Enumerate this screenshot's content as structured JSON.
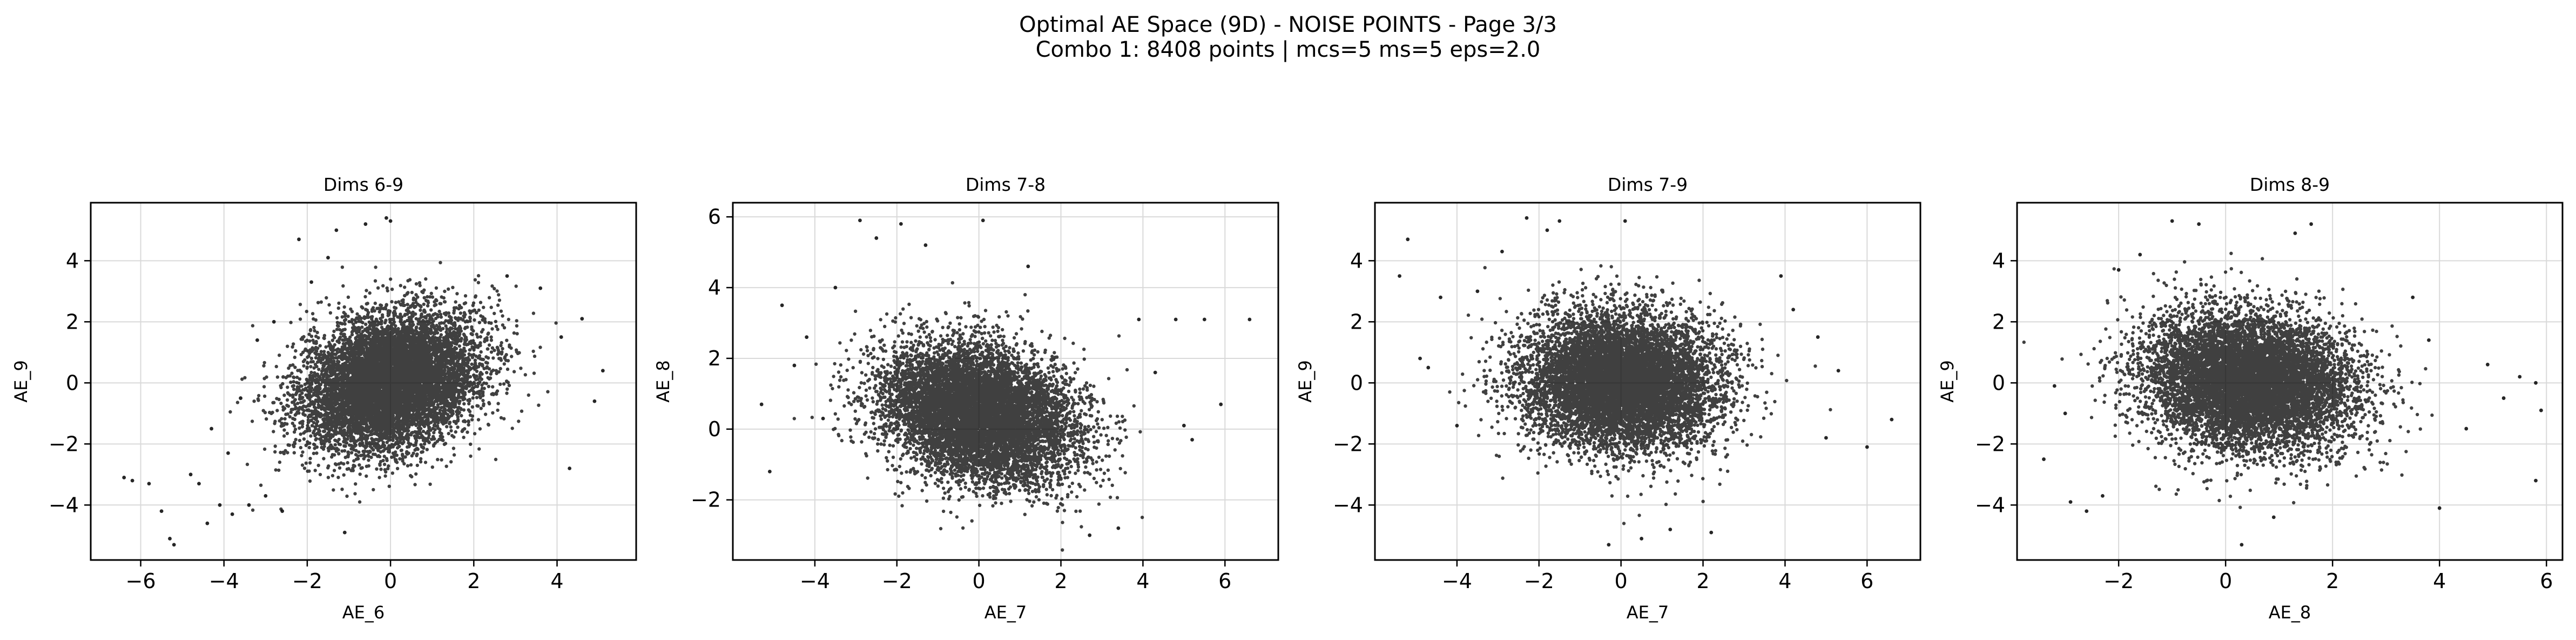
{
  "figure": {
    "title_line1": "Optimal AE Space (9D) - NOISE POINTS - Page 3/3",
    "title_line2": "Combo 1: 8408 points | mcs=5 ms=5 eps=2.0"
  },
  "colors": {
    "points": "#000000",
    "grid": "#d9d9d9",
    "axes": "#000000",
    "background": "#ffffff"
  },
  "chart_data": [
    {
      "type": "scatter",
      "title": "Dims 6-9",
      "xlabel": "AE_6",
      "ylabel": "AE_9",
      "xlim": [
        -7.2,
        5.9
      ],
      "ylim": [
        -5.8,
        5.9
      ],
      "xticks": [
        -6,
        -4,
        -2,
        0,
        2,
        4
      ],
      "yticks": [
        -4,
        -2,
        0,
        2,
        4
      ],
      "grid": true,
      "distribution": {
        "n": 8408,
        "x_mean": 0.0,
        "x_sd": 1.05,
        "y_mean": 0.05,
        "y_sd": 1.1,
        "corr": 0.28
      },
      "outliers": [
        [
          -6.4,
          -3.1
        ],
        [
          -6.2,
          -3.2
        ],
        [
          -5.8,
          -3.3
        ],
        [
          -5.5,
          -4.2
        ],
        [
          -5.3,
          -5.1
        ],
        [
          -5.2,
          -5.3
        ],
        [
          -4.8,
          -3.0
        ],
        [
          -4.6,
          -3.3
        ],
        [
          -4.4,
          -4.6
        ],
        [
          -4.3,
          -1.5
        ],
        [
          -4.1,
          -4.0
        ],
        [
          -3.9,
          -2.3
        ],
        [
          -3.8,
          -4.3
        ],
        [
          -3.6,
          -0.5
        ],
        [
          -3.4,
          -4.0
        ],
        [
          -3.2,
          1.4
        ],
        [
          -3.0,
          -3.7
        ],
        [
          -2.8,
          2.0
        ],
        [
          -2.6,
          -4.2
        ],
        [
          -2.2,
          4.7
        ],
        [
          -1.9,
          3.3
        ],
        [
          -1.5,
          4.1
        ],
        [
          -1.3,
          5.0
        ],
        [
          -1.1,
          -4.9
        ],
        [
          -0.6,
          5.2
        ],
        [
          -0.1,
          5.4
        ],
        [
          0.0,
          5.3
        ],
        [
          2.8,
          3.5
        ],
        [
          3.6,
          3.1
        ],
        [
          4.1,
          1.5
        ],
        [
          4.3,
          -2.8
        ],
        [
          4.6,
          2.1
        ],
        [
          4.9,
          -0.6
        ],
        [
          5.1,
          0.4
        ]
      ]
    },
    {
      "type": "scatter",
      "title": "Dims 7-8",
      "xlabel": "AE_7",
      "ylabel": "AE_8",
      "xlim": [
        -6.0,
        7.3
      ],
      "ylim": [
        -3.7,
        6.4
      ],
      "xticks": [
        -4,
        -2,
        0,
        2,
        4,
        6
      ],
      "yticks": [
        -2,
        0,
        2,
        4,
        6
      ],
      "grid": true,
      "distribution": {
        "n": 8408,
        "x_mean": 0.0,
        "x_sd": 1.15,
        "y_mean": 0.45,
        "y_sd": 0.95,
        "corr": -0.25
      },
      "outliers": [
        [
          -5.3,
          0.7
        ],
        [
          -5.1,
          -1.2
        ],
        [
          -4.8,
          3.5
        ],
        [
          -4.5,
          1.8
        ],
        [
          -4.2,
          2.6
        ],
        [
          -3.8,
          0.3
        ],
        [
          -3.5,
          4.0
        ],
        [
          -2.9,
          5.9
        ],
        [
          -2.5,
          5.4
        ],
        [
          -1.9,
          5.8
        ],
        [
          -1.3,
          5.2
        ],
        [
          0.1,
          5.9
        ],
        [
          1.2,
          4.6
        ],
        [
          2.7,
          -3.0
        ],
        [
          3.4,
          -2.8
        ],
        [
          3.9,
          3.1
        ],
        [
          4.3,
          1.6
        ],
        [
          4.8,
          3.1
        ],
        [
          5.0,
          0.1
        ],
        [
          5.2,
          -0.3
        ],
        [
          5.5,
          3.1
        ],
        [
          5.9,
          0.7
        ],
        [
          6.6,
          3.1
        ]
      ]
    },
    {
      "type": "scatter",
      "title": "Dims 7-9",
      "xlabel": "AE_7",
      "ylabel": "AE_9",
      "xlim": [
        -6.0,
        7.3
      ],
      "ylim": [
        -5.8,
        5.9
      ],
      "xticks": [
        -4,
        -2,
        0,
        2,
        4,
        6
      ],
      "yticks": [
        -4,
        -2,
        0,
        2,
        4
      ],
      "grid": true,
      "distribution": {
        "n": 8408,
        "x_mean": 0.0,
        "x_sd": 1.15,
        "y_mean": 0.05,
        "y_sd": 1.1,
        "corr": -0.05
      },
      "outliers": [
        [
          -5.4,
          3.5
        ],
        [
          -5.2,
          4.7
        ],
        [
          -4.9,
          0.8
        ],
        [
          -4.7,
          0.5
        ],
        [
          -4.4,
          2.8
        ],
        [
          -4.0,
          -1.4
        ],
        [
          -3.5,
          3.0
        ],
        [
          -2.9,
          4.3
        ],
        [
          -2.3,
          5.4
        ],
        [
          -1.8,
          5.0
        ],
        [
          -1.5,
          5.3
        ],
        [
          -0.3,
          -5.3
        ],
        [
          0.5,
          -5.1
        ],
        [
          0.1,
          5.3
        ],
        [
          1.2,
          -4.8
        ],
        [
          2.2,
          -4.9
        ],
        [
          3.9,
          3.5
        ],
        [
          4.2,
          2.4
        ],
        [
          4.8,
          1.5
        ],
        [
          5.0,
          -1.8
        ],
        [
          5.3,
          0.4
        ],
        [
          6.0,
          -2.1
        ],
        [
          6.6,
          -1.2
        ]
      ]
    },
    {
      "type": "scatter",
      "title": "Dims 8-9",
      "xlabel": "AE_8",
      "ylabel": "AE_9",
      "xlim": [
        -3.9,
        6.3
      ],
      "ylim": [
        -5.8,
        5.9
      ],
      "xticks": [
        -2,
        0,
        2,
        4,
        6
      ],
      "yticks": [
        -4,
        -2,
        0,
        2,
        4
      ],
      "grid": true,
      "distribution": {
        "n": 8408,
        "x_mean": 0.45,
        "x_sd": 0.95,
        "y_mean": 0.05,
        "y_sd": 1.1,
        "corr": -0.12
      },
      "outliers": [
        [
          -3.4,
          -2.5
        ],
        [
          -3.2,
          -0.1
        ],
        [
          -3.0,
          -1.0
        ],
        [
          -2.9,
          -3.9
        ],
        [
          -2.6,
          -4.2
        ],
        [
          -2.3,
          -3.7
        ],
        [
          -2.0,
          3.7
        ],
        [
          -1.6,
          4.2
        ],
        [
          -1.0,
          5.3
        ],
        [
          -0.5,
          5.2
        ],
        [
          0.3,
          -5.3
        ],
        [
          0.9,
          -4.4
        ],
        [
          1.3,
          4.9
        ],
        [
          1.6,
          5.2
        ],
        [
          3.5,
          2.8
        ],
        [
          3.8,
          1.4
        ],
        [
          4.0,
          -4.1
        ],
        [
          4.5,
          -1.5
        ],
        [
          4.9,
          0.6
        ],
        [
          5.2,
          -0.5
        ],
        [
          5.5,
          0.2
        ],
        [
          5.8,
          -3.2
        ],
        [
          5.9,
          -0.9
        ],
        [
          5.8,
          0.0
        ]
      ]
    }
  ]
}
